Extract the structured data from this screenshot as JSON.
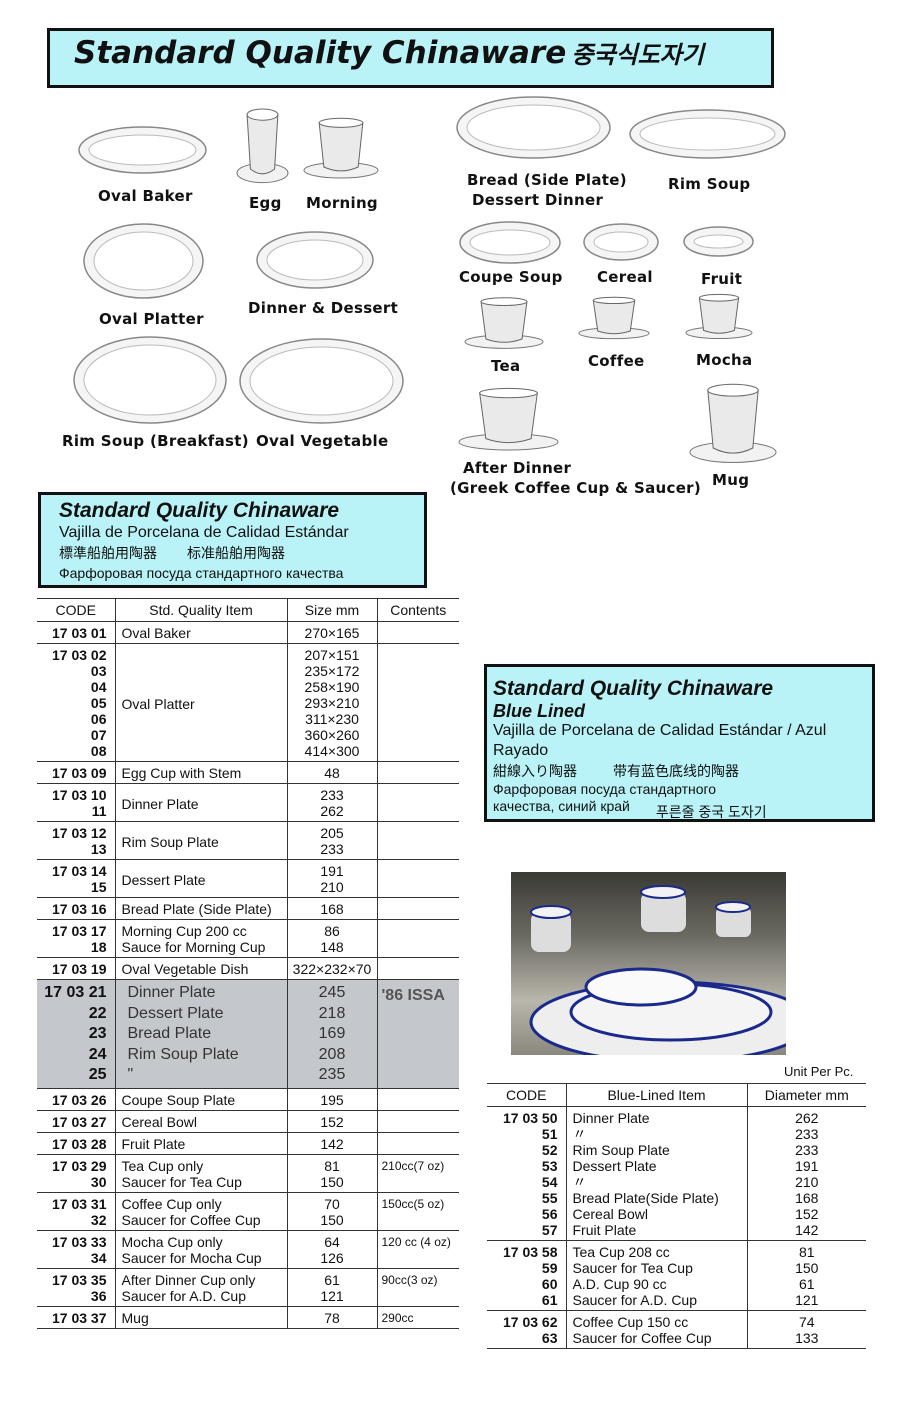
{
  "title": {
    "main": "Standard Quality Chinaware",
    "korean": "중국식도자기"
  },
  "pictures": [
    {
      "label": "Oval Baker",
      "icon": "oval-baker-image"
    },
    {
      "label": "Egg",
      "icon": "egg-cup-image"
    },
    {
      "label": "Morning",
      "icon": "morning-cup-image"
    },
    {
      "label": "Oval Platter",
      "icon": "oval-platter-image"
    },
    {
      "label": "Dinner & Dessert",
      "icon": "dinner-dessert-plates-image"
    },
    {
      "label": "Rim Soup (Breakfast)",
      "icon": "rim-soup-breakfast-image"
    },
    {
      "label": "Oval Vegetable",
      "icon": "oval-vegetable-image"
    },
    {
      "label": "Bread (Side Plate)",
      "label2": "Dessert Dinner",
      "icon": "bread-plate-image"
    },
    {
      "label": "Rim Soup",
      "icon": "rim-soup-image"
    },
    {
      "label": "Coupe Soup",
      "icon": "coupe-soup-image"
    },
    {
      "label": "Cereal",
      "icon": "cereal-bowl-image"
    },
    {
      "label": "Fruit",
      "icon": "fruit-bowl-image"
    },
    {
      "label": "Tea",
      "icon": "tea-cup-image"
    },
    {
      "label": "Coffee",
      "icon": "coffee-cup-image"
    },
    {
      "label": "Mocha",
      "icon": "mocha-cup-image"
    },
    {
      "label": "After Dinner",
      "label2": "(Greek Coffee Cup & Saucer)",
      "icon": "after-dinner-cup-image"
    },
    {
      "label": "Mug",
      "icon": "mug-image"
    }
  ],
  "box1": {
    "title": "Standard Quality Chinaware",
    "spanish": "Vajilla de Porcelana de Calidad Estándar",
    "japanese": "標準船舶用陶器",
    "chinese": "标准船舶用陶器",
    "russian": "Фарфоровая посуда стандартного качества"
  },
  "box2": {
    "title": "Standard Quality Chinaware",
    "subtitle": "Blue Lined",
    "spanish": "Vajilla de Porcelana de Calidad Estándar / Azul Rayado",
    "japanese": "紺線入り陶器",
    "chinese": "带有蓝色底线的陶器",
    "russian1": "Фарфоровая посуда стандартного",
    "russian2": "качества, синий край",
    "korean": "푸른줄 중국 도자기"
  },
  "left_table": {
    "headers": [
      "CODE",
      "Std. Quality Item",
      "Size mm",
      "Contents"
    ],
    "rows": [
      {
        "codes": [
          "17 03 01"
        ],
        "items": [
          "Oval Baker"
        ],
        "sizes": [
          "270×165"
        ],
        "contents": ""
      },
      {
        "codes": [
          "17 03 02",
          "03",
          "04",
          "05",
          "06",
          "07",
          "08"
        ],
        "items": [
          "Oval Platter"
        ],
        "sizes": [
          "207×151",
          "235×172",
          "258×190",
          "293×210",
          "311×230",
          "360×260",
          "414×300"
        ],
        "contents": ""
      },
      {
        "codes": [
          "17 03 09"
        ],
        "items": [
          "Egg Cup with Stem"
        ],
        "sizes": [
          "48"
        ],
        "contents": ""
      },
      {
        "codes": [
          "17 03 10",
          "11"
        ],
        "items": [
          "Dinner Plate"
        ],
        "sizes": [
          "233",
          "262"
        ],
        "contents": ""
      },
      {
        "codes": [
          "17 03 12",
          "13"
        ],
        "items": [
          "Rim Soup Plate"
        ],
        "sizes": [
          "205",
          "233"
        ],
        "contents": ""
      },
      {
        "codes": [
          "17 03 14",
          "15"
        ],
        "items": [
          "Dessert Plate"
        ],
        "sizes": [
          "191",
          "210"
        ],
        "contents": ""
      },
      {
        "codes": [
          "17 03 16"
        ],
        "items": [
          "Bread Plate (Side Plate)"
        ],
        "sizes": [
          "168"
        ],
        "contents": ""
      },
      {
        "codes": [
          "17 03 17",
          "18"
        ],
        "items": [
          "Morning Cup 200 cc",
          "Sauce for Morning Cup"
        ],
        "sizes": [
          "86",
          "148"
        ],
        "contents": ""
      },
      {
        "codes": [
          "17 03 19"
        ],
        "items": [
          "Oval Vegetable Dish"
        ],
        "sizes": [
          "322×232×70"
        ],
        "contents": ""
      },
      {
        "gray": true,
        "codes": [
          "17 03 21",
          "22",
          "23",
          "24",
          "25"
        ],
        "items": [
          "Dinner Plate",
          "Dessert Plate",
          "Bread Plate",
          "Rim Soup Plate",
          "\""
        ],
        "sizes": [
          "245",
          "218",
          "169",
          "208",
          "235"
        ],
        "contents": "'86 ISSA"
      },
      {
        "codes": [
          "17 03 26"
        ],
        "items": [
          "Coupe Soup Plate"
        ],
        "sizes": [
          "195"
        ],
        "contents": ""
      },
      {
        "codes": [
          "17 03 27"
        ],
        "items": [
          "Cereal Bowl"
        ],
        "sizes": [
          "152"
        ],
        "contents": ""
      },
      {
        "codes": [
          "17 03 28"
        ],
        "items": [
          "Fruit Plate"
        ],
        "sizes": [
          "142"
        ],
        "contents": ""
      },
      {
        "codes": [
          "17 03 29",
          "30"
        ],
        "items": [
          "Tea Cup only",
          "Saucer for Tea Cup"
        ],
        "sizes": [
          "81",
          "150"
        ],
        "contents": "210cc(7 oz)"
      },
      {
        "codes": [
          "17 03 31",
          "32"
        ],
        "items": [
          "Coffee Cup only",
          "Saucer for Coffee Cup"
        ],
        "sizes": [
          "70",
          "150"
        ],
        "contents": "150cc(5 oz)"
      },
      {
        "codes": [
          "17 03 33",
          "34"
        ],
        "items": [
          "Mocha Cup only",
          "Saucer for Mocha Cup"
        ],
        "sizes": [
          "64",
          "126"
        ],
        "contents": "120 cc (4 oz)"
      },
      {
        "codes": [
          "17 03 35",
          "36"
        ],
        "items": [
          "After Dinner Cup only",
          "Saucer for A.D. Cup"
        ],
        "sizes": [
          "61",
          "121"
        ],
        "contents": "90cc(3 oz)"
      },
      {
        "codes": [
          "17 03 37"
        ],
        "items": [
          "Mug"
        ],
        "sizes": [
          "78"
        ],
        "contents": "290cc"
      }
    ]
  },
  "unit_note": "Unit Per Pc.",
  "right_table": {
    "headers": [
      "CODE",
      "Blue-Lined Item",
      "Diameter mm"
    ],
    "rows": [
      {
        "codes": [
          "17 03 50",
          "51",
          "52",
          "53",
          "54",
          "55",
          "56",
          "57"
        ],
        "items": [
          "Dinner Plate",
          "〃",
          "Rim Soup Plate",
          "Dessert Plate",
          "〃",
          "Bread Plate(Side Plate)",
          "Cereal Bowl",
          "Fruit Plate"
        ],
        "sizes": [
          "262",
          "233",
          "233",
          "191",
          "210",
          "168",
          "152",
          "142"
        ]
      },
      {
        "codes": [
          "17 03 58",
          "59",
          "60",
          "61"
        ],
        "items": [
          "Tea Cup 208 cc",
          "Saucer for Tea Cup",
          "A.D. Cup 90 cc",
          "Saucer for A.D. Cup"
        ],
        "sizes": [
          "81",
          "150",
          "61",
          "121"
        ]
      },
      {
        "codes": [
          "17 03 62",
          "63"
        ],
        "items": [
          "Coffee Cup 150 cc",
          "Saucer for Coffee Cup"
        ],
        "sizes": [
          "74",
          "133"
        ]
      }
    ]
  },
  "colors": {
    "box_bg": "#b9f3f7",
    "gray_row": "#c4c8cc",
    "blue_rim": "#1a2a8c"
  }
}
